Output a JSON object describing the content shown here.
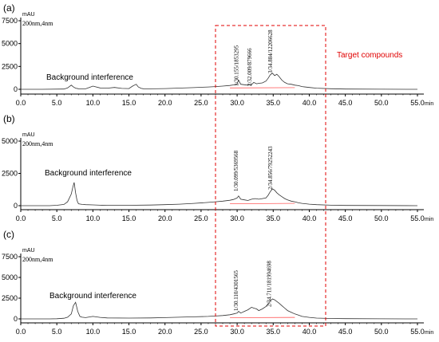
{
  "chart_data": [
    {
      "type": "line",
      "panel_label": "(a)",
      "y_unit": "mAU",
      "wavelength_label": "200nm,4nm",
      "x_unit": "min",
      "xlim": [
        0,
        55
      ],
      "ylim": [
        0,
        7500
      ],
      "x_ticks": [
        "0.0",
        "5.0",
        "10.0",
        "15.0",
        "20.0",
        "25.0",
        "30.0",
        "35.0",
        "40.0",
        "45.0",
        "50.0",
        "55.0"
      ],
      "y_ticks": [
        "0",
        "2500",
        "5000",
        "7500"
      ],
      "annotation": "Background interference",
      "peak_labels": [
        "1/30.155/1853295",
        "2/32.009/879666",
        "3/34.884/12206628"
      ],
      "target_label": "Target compounds",
      "series": [
        {
          "x": [
            0,
            3,
            6,
            6.5,
            7,
            7.3,
            7.6,
            8,
            9,
            9.5,
            10,
            11,
            12,
            13,
            14,
            15,
            15.5,
            16,
            16.3,
            16.7,
            17,
            18,
            20,
            22,
            24,
            26,
            27,
            28,
            29,
            29.5,
            30,
            30.2,
            30.5,
            31,
            31.5,
            32,
            32.3,
            32.7,
            33,
            33.5,
            34,
            34.3,
            34.6,
            34.9,
            35.2,
            35.5,
            35.8,
            36.2,
            36.6,
            37,
            37.5,
            38,
            38.5,
            39,
            40,
            41,
            43,
            45,
            50,
            55
          ],
          "y": [
            0,
            0,
            30,
            150,
            450,
            250,
            120,
            60,
            50,
            200,
            350,
            150,
            120,
            200,
            100,
            80,
            350,
            550,
            250,
            100,
            60,
            50,
            80,
            130,
            180,
            250,
            300,
            350,
            420,
            480,
            600,
            1000,
            550,
            500,
            450,
            500,
            750,
            600,
            650,
            700,
            900,
            1200,
            1600,
            1750,
            1500,
            1650,
            1400,
            1000,
            750,
            600,
            550,
            450,
            400,
            300,
            200,
            120,
            60,
            30,
            10,
            0
          ]
        }
      ]
    },
    {
      "type": "line",
      "panel_label": "(b)",
      "y_unit": "mAU",
      "wavelength_label": "200nm,4nm",
      "x_unit": "min",
      "xlim": [
        0,
        55
      ],
      "ylim": [
        0,
        5000
      ],
      "x_ticks": [
        "0.0",
        "5.0",
        "10.0",
        "15.0",
        "20.0",
        "25.0",
        "30.0",
        "35.0",
        "40.0",
        "45.0",
        "50.0",
        "55.0"
      ],
      "y_ticks": [
        "0",
        "2500",
        "5000"
      ],
      "annotation": "Background interference",
      "peak_labels": [
        "1/30.099/5369568",
        "2/34.856/79252243"
      ],
      "series": [
        {
          "x": [
            0,
            4,
            5,
            6,
            6.5,
            7,
            7.2,
            7.4,
            7.6,
            7.8,
            8,
            8.5,
            9,
            10,
            11,
            12,
            15,
            18,
            20,
            22,
            24,
            26,
            27,
            28,
            29,
            29.5,
            30,
            30.2,
            30.5,
            31,
            31.5,
            32,
            32.5,
            33,
            33.5,
            34,
            34.3,
            34.6,
            34.9,
            35.2,
            35.5,
            35.8,
            36.2,
            36.6,
            37,
            37.5,
            38,
            38.5,
            39,
            40,
            41,
            43,
            45,
            50,
            55
          ],
          "y": [
            0,
            0,
            30,
            100,
            300,
            900,
            1400,
            1800,
            1000,
            400,
            150,
            100,
            80,
            60,
            40,
            30,
            30,
            50,
            80,
            120,
            180,
            250,
            300,
            350,
            420,
            480,
            600,
            750,
            500,
            450,
            400,
            500,
            550,
            500,
            550,
            600,
            800,
            1100,
            1300,
            1200,
            1000,
            850,
            700,
            550,
            450,
            350,
            300,
            220,
            180,
            120,
            80,
            40,
            20,
            10,
            0
          ]
        }
      ]
    },
    {
      "type": "line",
      "panel_label": "(c)",
      "y_unit": "mAU",
      "wavelength_label": "200nm,4nm",
      "x_unit": "min",
      "xlim": [
        0,
        55
      ],
      "ylim": [
        0,
        7500
      ],
      "x_ticks": [
        "0.0",
        "5.0",
        "10.0",
        "15.0",
        "20.0",
        "25.0",
        "30.0",
        "35.0",
        "40.0",
        "45.0",
        "50.0",
        "55.0"
      ],
      "y_ticks": [
        "0",
        "2500",
        "5000",
        "7500"
      ],
      "annotation": "Background interference",
      "peak_labels": [
        "1/30.110/4301565",
        "2/34.711/181994698"
      ],
      "series": [
        {
          "x": [
            0,
            4,
            5,
            6,
            6.5,
            7,
            7.3,
            7.6,
            7.9,
            8.2,
            8.5,
            9,
            10,
            11,
            12,
            15,
            18,
            20,
            22,
            24,
            26,
            27,
            28,
            29,
            29.5,
            30,
            30.2,
            30.5,
            31,
            31.5,
            32,
            32.3,
            32.7,
            33,
            33.5,
            34,
            34.3,
            34.6,
            34.9,
            35.2,
            35.5,
            35.8,
            36.2,
            36.6,
            37,
            37.5,
            38,
            38.5,
            39,
            40,
            41,
            43,
            45,
            50,
            55
          ],
          "y": [
            0,
            0,
            20,
            80,
            200,
            600,
            1600,
            2000,
            900,
            300,
            200,
            150,
            300,
            180,
            120,
            100,
            120,
            150,
            200,
            250,
            300,
            350,
            400,
            500,
            600,
            700,
            900,
            700,
            900,
            1100,
            1400,
            1300,
            1200,
            1000,
            1200,
            1500,
            1800,
            2200,
            2400,
            2300,
            2100,
            1900,
            1600,
            1300,
            1000,
            800,
            600,
            450,
            300,
            180,
            100,
            50,
            25,
            10,
            0
          ]
        }
      ]
    }
  ]
}
